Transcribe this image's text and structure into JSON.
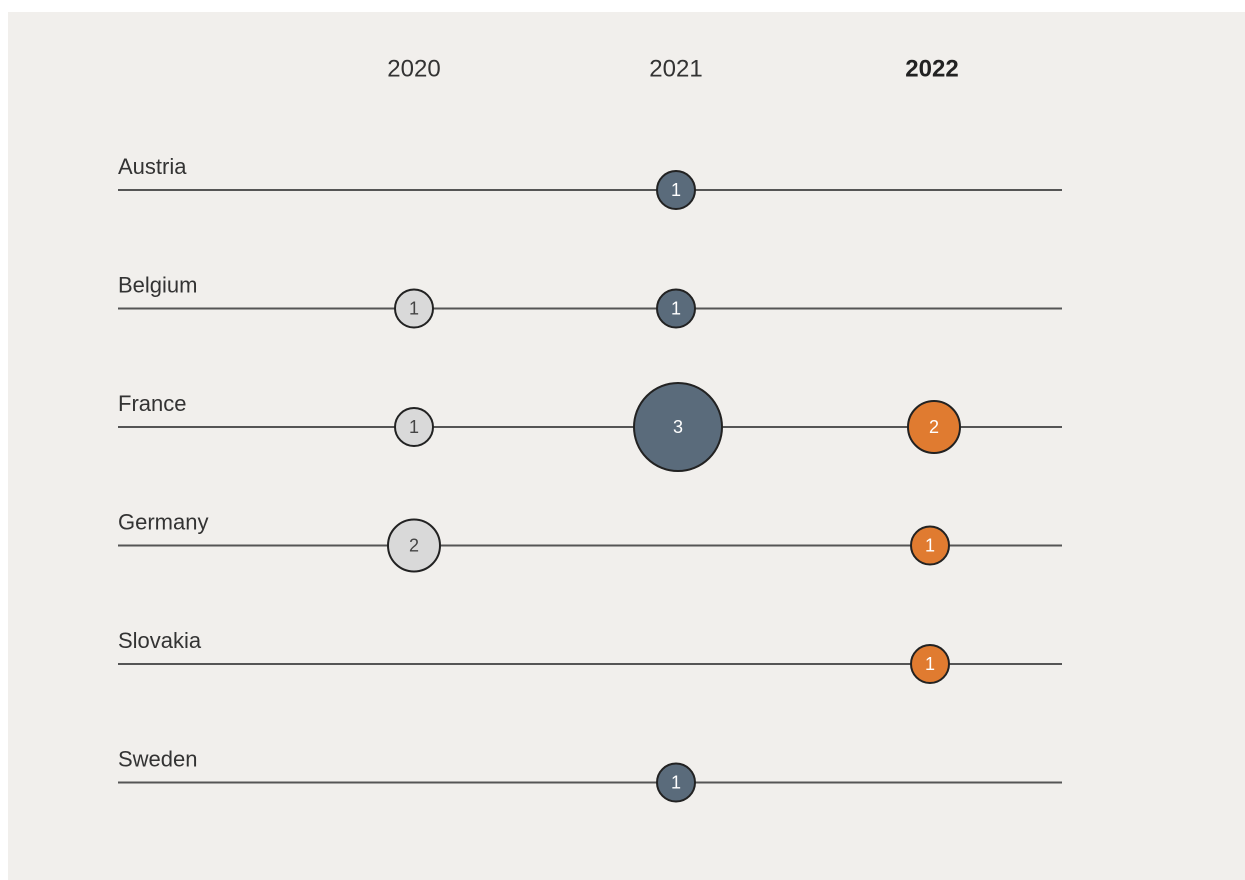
{
  "chart_data": {
    "type": "scatter",
    "years": [
      "2020",
      "2021",
      "2022"
    ],
    "highlight_year": "2022",
    "countries": [
      "Austria",
      "Belgium",
      "France",
      "Germany",
      "Slovakia",
      "Sweden"
    ],
    "colors": {
      "2020": "#d9d9d9",
      "2021": "#5a6b7b",
      "2022": "#e07b30"
    },
    "text_colors": {
      "2020": "#444444",
      "2021": "#ffffff",
      "2022": "#ffffff"
    },
    "points": [
      {
        "country": "Austria",
        "year": "2021",
        "value": 1
      },
      {
        "country": "Belgium",
        "year": "2020",
        "value": 1
      },
      {
        "country": "Belgium",
        "year": "2021",
        "value": 1
      },
      {
        "country": "France",
        "year": "2020",
        "value": 1
      },
      {
        "country": "France",
        "year": "2021",
        "value": 3
      },
      {
        "country": "France",
        "year": "2022",
        "value": 2
      },
      {
        "country": "Germany",
        "year": "2020",
        "value": 2
      },
      {
        "country": "Germany",
        "year": "2022",
        "value": 1
      },
      {
        "country": "Slovakia",
        "year": "2022",
        "value": 1
      },
      {
        "country": "Sweden",
        "year": "2021",
        "value": 1
      }
    ]
  }
}
